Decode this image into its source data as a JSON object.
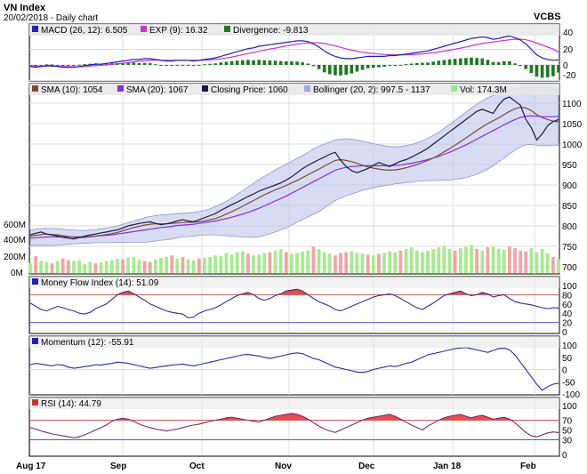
{
  "header": {
    "title": "VN Index",
    "subtitle": "20/02/2018 - Daily chart",
    "brand": "VCBS"
  },
  "panels": {
    "macd": {
      "legend": [
        {
          "label": "MACD (26, 12): 6.505",
          "color": "#1f1fbf"
        },
        {
          "label": "EXP (9): 16.32",
          "color": "#cc33cc"
        },
        {
          "label": "Divergence: -9.813",
          "color": "#1f7a1f"
        }
      ],
      "ticks": [
        "40",
        "20",
        "0",
        "-20"
      ]
    },
    "price": {
      "legend": [
        {
          "label": "SMA (10): 1054",
          "color": "#7a4a3a"
        },
        {
          "label": "SMA (20): 1067",
          "color": "#8a2be2"
        },
        {
          "label": "Closing Price: 1060",
          "color": "#1a1a40"
        },
        {
          "label": "Bollinger (20, 2): 997.5 - 1137",
          "color": "#9fa8e0"
        },
        {
          "label": "Vol: 174.3M",
          "color": "#99e699"
        }
      ],
      "ticks": [
        "1100",
        "1050",
        "1000",
        "950",
        "900",
        "850",
        "800",
        "750",
        "700"
      ],
      "vol_ticks": [
        "600M",
        "400M",
        "200M",
        "0M"
      ]
    },
    "mfi": {
      "legend": [
        {
          "label": "Money Flow Index (14): 51.09",
          "color": "#1f1fbf"
        }
      ],
      "ticks": [
        "100",
        "80",
        "60",
        "40",
        "20",
        "0"
      ]
    },
    "momentum": {
      "legend": [
        {
          "label": "Momentum (12): -55.91",
          "color": "#1f1fbf"
        }
      ],
      "ticks": [
        "100",
        "50",
        "0",
        "-50",
        "-100"
      ]
    },
    "rsi": {
      "legend": [
        {
          "label": "RSI (14): 44.79",
          "color": "#cc3333"
        }
      ],
      "ticks": [
        "100",
        "70",
        "50",
        "30",
        "0"
      ]
    }
  },
  "x_axis": [
    "Aug 17",
    "Sep",
    "Oct",
    "Nov",
    "Dec",
    "Jan 18",
    "Feb"
  ],
  "chart_data": {
    "type": "line",
    "x_labels": [
      "Aug 17",
      "Sep",
      "Oct",
      "Nov",
      "Dec",
      "Jan 18",
      "Feb"
    ],
    "close": [
      778,
      782,
      785,
      780,
      778,
      775,
      772,
      770,
      768,
      772,
      775,
      778,
      780,
      783,
      785,
      788,
      790,
      795,
      800,
      803,
      806,
      808,
      810,
      806,
      803,
      805,
      808,
      812,
      815,
      812,
      810,
      815,
      820,
      825,
      830,
      838,
      845,
      852,
      858,
      865,
      872,
      878,
      885,
      890,
      895,
      900,
      905,
      912,
      920,
      930,
      940,
      948,
      955,
      962,
      968,
      975,
      980,
      960,
      945,
      935,
      930,
      935,
      940,
      948,
      955,
      950,
      945,
      952,
      958,
      962,
      968,
      975,
      982,
      990,
      1000,
      1010,
      1020,
      1030,
      1040,
      1050,
      1060,
      1070,
      1080,
      1085,
      1080,
      1075,
      1095,
      1110,
      1115,
      1105,
      1095,
      1060,
      1040,
      1010,
      1025,
      1045,
      1055,
      1060
    ],
    "sma10": [
      775,
      777,
      779,
      780,
      779,
      778,
      776,
      774,
      772,
      771,
      772,
      773,
      775,
      777,
      779,
      781,
      784,
      788,
      792,
      796,
      799,
      802,
      804,
      805,
      805,
      805,
      806,
      807,
      808,
      809,
      809,
      810,
      812,
      815,
      818,
      823,
      829,
      835,
      841,
      848,
      855,
      862,
      869,
      876,
      882,
      888,
      893,
      899,
      905,
      911,
      918,
      925,
      932,
      939,
      946,
      953,
      960,
      962,
      960,
      957,
      953,
      948,
      944,
      941,
      939,
      937,
      936,
      937,
      939,
      942,
      946,
      950,
      955,
      960,
      966,
      973,
      981,
      989,
      997,
      1006,
      1015,
      1024,
      1033,
      1042,
      1050,
      1057,
      1064,
      1072,
      1080,
      1086,
      1090,
      1088,
      1082,
      1072,
      1065,
      1060,
      1056,
      1054
    ],
    "sma20": [
      770,
      771,
      772,
      773,
      773,
      773,
      773,
      773,
      773,
      773,
      773,
      774,
      775,
      776,
      777,
      778,
      780,
      782,
      784,
      786,
      788,
      790,
      792,
      794,
      796,
      797,
      799,
      801,
      802,
      803,
      804,
      806,
      808,
      810,
      812,
      815,
      818,
      821,
      825,
      829,
      833,
      838,
      843,
      849,
      855,
      861,
      867,
      873,
      880,
      887,
      894,
      901,
      908,
      915,
      922,
      929,
      936,
      940,
      943,
      945,
      946,
      947,
      947,
      947,
      947,
      947,
      947,
      948,
      949,
      951,
      953,
      956,
      959,
      962,
      966,
      970,
      975,
      980,
      986,
      992,
      998,
      1005,
      1012,
      1019,
      1026,
      1033,
      1040,
      1047,
      1054,
      1060,
      1065,
      1068,
      1069,
      1068,
      1067,
      1067,
      1067,
      1067
    ],
    "boll_upper": [
      790,
      792,
      793,
      794,
      794,
      793,
      792,
      791,
      790,
      789,
      789,
      790,
      791,
      793,
      795,
      797,
      800,
      804,
      808,
      812,
      816,
      820,
      823,
      825,
      827,
      828,
      829,
      830,
      831,
      832,
      833,
      835,
      838,
      842,
      847,
      853,
      860,
      868,
      877,
      886,
      895,
      904,
      913,
      921,
      929,
      937,
      944,
      951,
      958,
      965,
      972,
      980,
      988,
      995,
      1000,
      1005,
      1010,
      1012,
      1013,
      1012,
      1010,
      1007,
      1004,
      1001,
      998,
      996,
      994,
      993,
      994,
      996,
      999,
      1003,
      1008,
      1014,
      1021,
      1029,
      1038,
      1048,
      1058,
      1068,
      1078,
      1088,
      1098,
      1106,
      1113,
      1119,
      1124,
      1128,
      1132,
      1135,
      1137,
      1138,
      1139,
      1139,
      1138,
      1138,
      1137,
      1137
    ],
    "boll_lower": [
      752,
      752,
      752,
      752,
      752,
      753,
      754,
      755,
      756,
      757,
      758,
      758,
      759,
      759,
      759,
      759,
      760,
      760,
      760,
      760,
      760,
      760,
      761,
      763,
      765,
      766,
      768,
      771,
      773,
      774,
      775,
      777,
      778,
      778,
      778,
      777,
      776,
      775,
      774,
      773,
      772,
      772,
      773,
      777,
      781,
      785,
      790,
      795,
      802,
      809,
      816,
      822,
      828,
      835,
      844,
      853,
      862,
      868,
      873,
      878,
      882,
      887,
      890,
      893,
      896,
      898,
      900,
      903,
      904,
      906,
      907,
      909,
      910,
      910,
      911,
      911,
      912,
      912,
      914,
      916,
      918,
      922,
      926,
      932,
      939,
      947,
      956,
      966,
      976,
      985,
      993,
      998,
      999,
      997,
      996,
      996,
      997,
      997.5
    ],
    "volume": [
      130,
      210,
      150,
      140,
      120,
      150,
      180,
      160,
      150,
      160,
      110,
      140,
      120,
      130,
      150,
      160,
      180,
      170,
      190,
      200,
      160,
      150,
      140,
      170,
      190,
      200,
      220,
      180,
      200,
      170,
      160,
      180,
      190,
      200,
      220,
      210,
      250,
      230,
      260,
      270,
      240,
      220,
      230,
      250,
      260,
      280,
      300,
      260,
      240,
      250,
      270,
      280,
      330,
      300,
      260,
      240,
      220,
      250,
      260,
      270,
      250,
      240,
      230,
      220,
      240,
      250,
      270,
      260,
      280,
      300,
      320,
      280,
      260,
      280,
      300,
      320,
      340,
      300,
      280,
      310,
      330,
      350,
      300,
      280,
      320,
      330,
      300,
      290,
      330,
      310,
      280,
      270,
      310,
      260,
      300,
      250,
      200,
      174.3
    ],
    "volume_up": [
      1,
      0,
      1,
      1,
      0,
      1,
      0,
      0,
      1,
      1,
      1,
      1,
      0,
      1,
      1,
      1,
      1,
      0,
      1,
      1,
      1,
      0,
      0,
      1,
      1,
      1,
      0,
      1,
      0,
      1,
      1,
      0,
      1,
      1,
      1,
      1,
      1,
      1,
      1,
      1,
      0,
      1,
      1,
      1,
      0,
      1,
      1,
      0,
      1,
      1,
      1,
      1,
      0,
      1,
      1,
      1,
      0,
      0,
      0,
      1,
      1,
      1,
      0,
      1,
      0,
      1,
      1,
      1,
      0,
      1,
      1,
      1,
      1,
      1,
      1,
      1,
      1,
      1,
      0,
      1,
      1,
      1,
      0,
      1,
      0,
      1,
      1,
      1,
      0,
      0,
      0,
      0,
      1,
      1,
      1,
      1,
      0,
      1
    ],
    "macd": [
      -2,
      -3,
      -2,
      -1,
      -1,
      -2,
      -3,
      -3,
      -3,
      -2,
      -1,
      0,
      1,
      1,
      2,
      3,
      4,
      5,
      6,
      7,
      7,
      8,
      8,
      7,
      6,
      5,
      5,
      6,
      6,
      6,
      5,
      6,
      7,
      8,
      9,
      11,
      13,
      15,
      17,
      19,
      21,
      22,
      24,
      25,
      26,
      27,
      28,
      29,
      30,
      31,
      31,
      30,
      27,
      23,
      18,
      14,
      11,
      9,
      8,
      8,
      9,
      10,
      11,
      11,
      11,
      11,
      12,
      12,
      13,
      14,
      15,
      16,
      17,
      18,
      20,
      22,
      24,
      26,
      28,
      30,
      32,
      34,
      35,
      36,
      35,
      33,
      34,
      36,
      37,
      35,
      32,
      27,
      20,
      13,
      9,
      7,
      6,
      6.505
    ],
    "exp9": [
      -1,
      -1.5,
      -1.8,
      -1.7,
      -1.6,
      -1.7,
      -2,
      -2.2,
      -2.4,
      -2.3,
      -2,
      -1.5,
      -1,
      -0.5,
      0,
      0.8,
      1.5,
      2.3,
      3,
      4,
      4.7,
      5.3,
      5.8,
      6.1,
      6.1,
      6,
      5.9,
      5.9,
      5.9,
      5.9,
      5.8,
      5.9,
      6.1,
      6.5,
      7,
      7.8,
      8.9,
      10.2,
      11.5,
      13,
      14.5,
      16,
      17.5,
      19,
      20.3,
      21.6,
      23,
      24.3,
      25.5,
      26.7,
      27.7,
      28.3,
      28.6,
      28.4,
      27.5,
      26,
      24.3,
      22.5,
      20.7,
      19,
      17.6,
      16.4,
      15.4,
      14.6,
      14,
      13.4,
      13.1,
      12.9,
      12.9,
      13,
      13.3,
      13.7,
      14.2,
      14.9,
      15.7,
      16.6,
      17.7,
      18.9,
      20.2,
      21.6,
      23.1,
      24.6,
      26.1,
      27.5,
      28.6,
      29.5,
      30.4,
      31.4,
      32.4,
      33,
      33.1,
      32.3,
      30.5,
      28,
      25.5,
      22.9,
      20.5,
      16.32
    ],
    "mfi": [
      62,
      55,
      48,
      45,
      50,
      55,
      52,
      48,
      45,
      40,
      38,
      42,
      50,
      55,
      60,
      70,
      80,
      85,
      88,
      82,
      75,
      68,
      60,
      55,
      50,
      45,
      42,
      40,
      38,
      30,
      32,
      40,
      45,
      48,
      52,
      58,
      65,
      72,
      78,
      82,
      85,
      80,
      72,
      68,
      72,
      78,
      82,
      88,
      90,
      92,
      88,
      80,
      72,
      65,
      60,
      55,
      48,
      45,
      50,
      55,
      60,
      65,
      70,
      75,
      78,
      80,
      82,
      78,
      72,
      65,
      58,
      52,
      48,
      55,
      62,
      70,
      78,
      82,
      85,
      88,
      82,
      78,
      80,
      85,
      82,
      75,
      78,
      80,
      72,
      65,
      62,
      60,
      58,
      55,
      52,
      50,
      52,
      51.09
    ],
    "momentum": [
      20,
      25,
      22,
      18,
      15,
      20,
      18,
      10,
      5,
      8,
      12,
      15,
      20,
      18,
      22,
      25,
      30,
      28,
      25,
      20,
      15,
      10,
      5,
      8,
      12,
      15,
      18,
      20,
      22,
      18,
      15,
      20,
      25,
      30,
      35,
      40,
      45,
      50,
      55,
      60,
      62,
      58,
      55,
      50,
      45,
      50,
      55,
      60,
      65,
      68,
      65,
      55,
      45,
      40,
      30,
      20,
      10,
      5,
      0,
      -5,
      -10,
      -12,
      -8,
      0,
      5,
      10,
      15,
      12,
      18,
      25,
      30,
      40,
      50,
      60,
      65,
      70,
      75,
      80,
      85,
      88,
      90,
      85,
      80,
      75,
      70,
      78,
      85,
      88,
      80,
      60,
      30,
      0,
      -30,
      -60,
      -85,
      -70,
      -60,
      -55.91
    ],
    "rsi": [
      55,
      52,
      48,
      45,
      42,
      40,
      38,
      36,
      34,
      36,
      40,
      45,
      50,
      55,
      60,
      68,
      72,
      74,
      72,
      68,
      62,
      58,
      55,
      52,
      50,
      48,
      50,
      52,
      55,
      58,
      60,
      62,
      65,
      68,
      70,
      72,
      75,
      76,
      74,
      72,
      70,
      68,
      66,
      70,
      74,
      78,
      80,
      82,
      84,
      82,
      78,
      72,
      65,
      58,
      52,
      48,
      45,
      50,
      55,
      60,
      65,
      70,
      74,
      76,
      78,
      80,
      82,
      78,
      72,
      66,
      60,
      55,
      50,
      58,
      64,
      70,
      75,
      78,
      80,
      82,
      78,
      75,
      78,
      80,
      76,
      72,
      74,
      76,
      72,
      65,
      55,
      45,
      38,
      36,
      40,
      44,
      46,
      44.79
    ]
  }
}
